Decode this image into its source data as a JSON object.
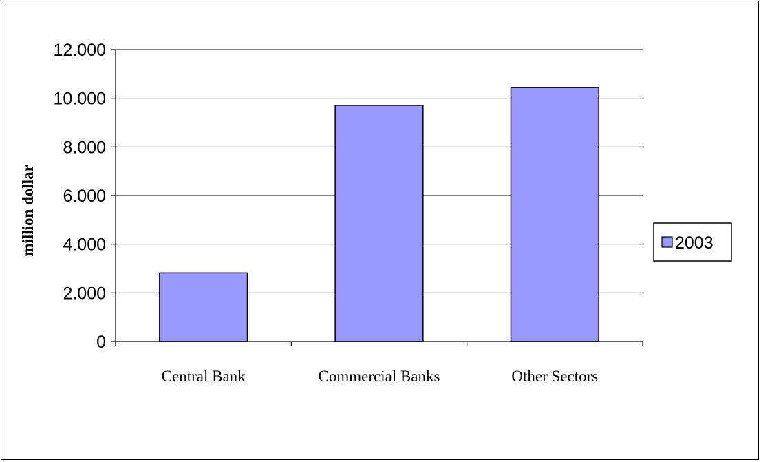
{
  "chart_data": {
    "type": "bar",
    "title": "",
    "xlabel": "",
    "ylabel": "million dollar",
    "categories": [
      "Central Bank",
      "Commercial Banks",
      "Other Sectors"
    ],
    "series": [
      {
        "name": "2003",
        "values": [
          2820,
          9710,
          10440
        ]
      }
    ],
    "ylim": [
      0,
      12000
    ],
    "yticks": [
      0,
      2000,
      4000,
      6000,
      8000,
      10000,
      12000
    ],
    "ytick_labels": [
      "0",
      "2.000",
      "4.000",
      "6.000",
      "8.000",
      "10.000",
      "12.000"
    ],
    "grid": true,
    "legend_position": "right",
    "colors": {
      "bar_fill": "#9999ff",
      "bar_stroke": "#000000",
      "gridline": "#000000"
    }
  }
}
